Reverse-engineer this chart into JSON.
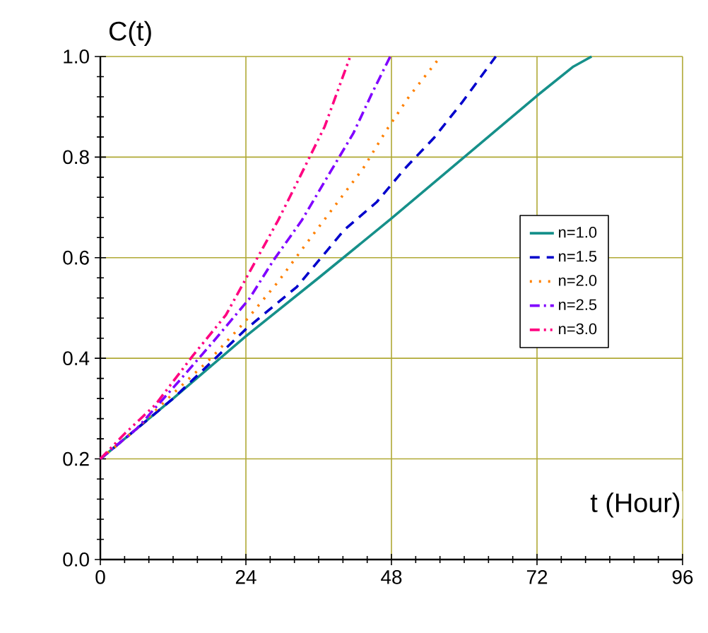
{
  "chart_data": {
    "type": "line",
    "xlabel": "t (Hour)",
    "ylabel": "C(t)",
    "xlim": [
      0,
      96
    ],
    "ylim": [
      0,
      1.0
    ],
    "xticks": [
      0,
      24,
      48,
      72,
      96
    ],
    "yticks": [
      {
        "value": 0,
        "label": "0.0"
      },
      {
        "value": 0.2,
        "label": "0.2"
      },
      {
        "value": 0.4,
        "label": "0.4"
      },
      {
        "value": 0.6,
        "label": "0.6"
      },
      {
        "value": 0.8,
        "label": "0.8"
      },
      {
        "value": 1.0,
        "label": "1.0"
      }
    ],
    "grid": true,
    "legend": "right",
    "marker": "none",
    "series": [
      {
        "name": "n=1.0",
        "color": "#16908a",
        "line_style": "solid",
        "x": [
          0,
          6,
          12,
          24,
          36,
          48,
          60,
          72,
          78,
          81
        ],
        "values": [
          0.2,
          0.26,
          0.32,
          0.444,
          0.56,
          0.678,
          0.8,
          0.922,
          0.98,
          1.0
        ]
      },
      {
        "name": "n=1.5",
        "color": "#0000cc",
        "line_style": "dashed",
        "x": [
          0,
          6,
          12,
          24,
          32.4,
          40.2,
          45.6,
          50.2,
          55,
          59.6,
          65.2
        ],
        "values": [
          0.2,
          0.26,
          0.32,
          0.458,
          0.542,
          0.655,
          0.711,
          0.777,
          0.838,
          0.908,
          1.0
        ]
      },
      {
        "name": "n=2.0",
        "color": "#ff8000",
        "line_style": "dotted",
        "x": [
          0,
          6,
          12,
          18.4,
          23.8,
          29.3,
          33.9,
          38.6,
          43.3,
          47.1,
          51,
          56.1
        ],
        "values": [
          0.2,
          0.26,
          0.33,
          0.402,
          0.472,
          0.552,
          0.627,
          0.702,
          0.777,
          0.852,
          0.922,
          1.0
        ]
      },
      {
        "name": "n=2.5",
        "color": "#8000ff",
        "line_style": "dashdot",
        "x": [
          0,
          6,
          13,
          18.4,
          24.6,
          28.5,
          33.2,
          37.8,
          41.7,
          44.8,
          47.8
        ],
        "values": [
          0.2,
          0.26,
          0.355,
          0.43,
          0.519,
          0.594,
          0.674,
          0.768,
          0.847,
          0.927,
          1.0
        ]
      },
      {
        "name": "n=3.0",
        "color": "#ff0080",
        "line_style": "dashdotdot",
        "x": [
          0,
          4,
          9.1,
          15.3,
          20.7,
          25.4,
          29.3,
          33.2,
          37,
          41.2
        ],
        "values": [
          0.2,
          0.25,
          0.308,
          0.406,
          0.486,
          0.589,
          0.674,
          0.768,
          0.861,
          1.0
        ]
      }
    ]
  }
}
